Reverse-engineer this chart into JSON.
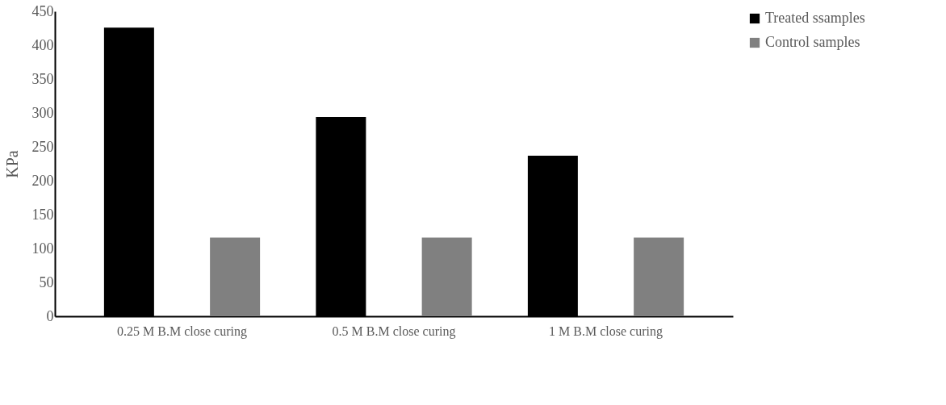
{
  "chart_data": {
    "type": "bar",
    "ylabel": "KPa",
    "categories": [
      "0.25 M B.M close curing",
      "0.5 M  B.M close curing",
      "1 M  B.M close curing"
    ],
    "series": [
      {
        "name": "Treated ssamples",
        "color": "#000000",
        "values": [
          426,
          294,
          237
        ]
      },
      {
        "name": "Control samples",
        "color": "#808080",
        "values": [
          116,
          116,
          116
        ]
      }
    ],
    "ylim": [
      0,
      450
    ],
    "yticks": [
      0,
      50,
      100,
      150,
      200,
      250,
      300,
      350,
      400,
      450
    ],
    "grid": false,
    "legend": "right"
  }
}
